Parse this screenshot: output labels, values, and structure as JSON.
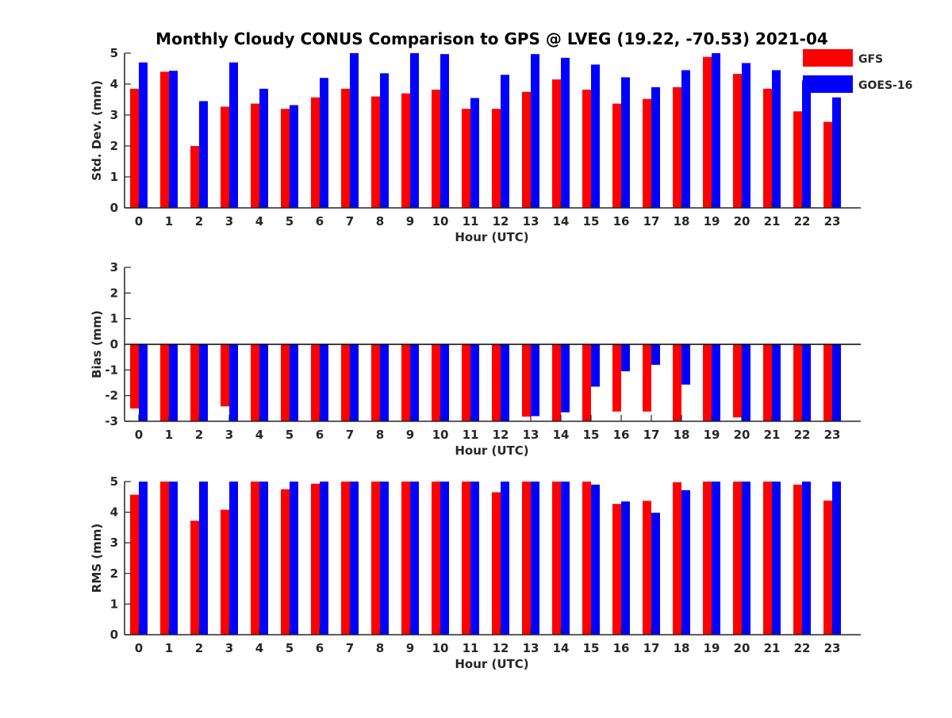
{
  "chart_data": {
    "title": "Monthly Cloudy CONUS Comparison to GPS @ LVEG (19.22, -70.53) 2021-04",
    "legend": {
      "placement": "top-right",
      "entries": [
        {
          "label": "GFS",
          "color": "#ff0000"
        },
        {
          "label": "GOES-16",
          "color": "#0000ff"
        }
      ]
    },
    "panels": [
      {
        "type": "bar",
        "xlabel": "Hour (UTC)",
        "ylabel": "Std. Dev. (mm)",
        "ylim": [
          0,
          5
        ],
        "yticks": [
          0,
          1,
          2,
          3,
          4,
          5
        ],
        "categories": [
          "0",
          "1",
          "2",
          "3",
          "4",
          "5",
          "6",
          "7",
          "8",
          "9",
          "10",
          "11",
          "12",
          "13",
          "14",
          "15",
          "16",
          "17",
          "18",
          "19",
          "20",
          "21",
          "22",
          "23"
        ],
        "series": [
          {
            "name": "GFS",
            "color": "#ff0000",
            "values": [
              3.85,
              4.4,
              2.0,
              3.27,
              3.37,
              3.2,
              3.57,
              3.85,
              3.6,
              3.7,
              3.82,
              3.2,
              3.2,
              3.75,
              4.15,
              3.82,
              3.37,
              3.52,
              3.9,
              4.88,
              4.33,
              3.85,
              3.12,
              2.78
            ]
          },
          {
            "name": "GOES-16",
            "color": "#0000ff",
            "values": [
              4.7,
              4.43,
              3.45,
              4.7,
              3.85,
              3.32,
              4.2,
              5.0,
              4.35,
              5.0,
              4.97,
              3.55,
              4.3,
              4.97,
              4.85,
              4.63,
              4.22,
              3.9,
              4.45,
              5.0,
              4.68,
              4.45,
              4.12,
              3.57
            ]
          }
        ]
      },
      {
        "type": "bar",
        "xlabel": "Hour (UTC)",
        "ylabel": "Bias (mm)",
        "ylim": [
          -3,
          3
        ],
        "yticks": [
          -3,
          -2,
          -1,
          0,
          1,
          2,
          3
        ],
        "categories": [
          "0",
          "1",
          "2",
          "3",
          "4",
          "5",
          "6",
          "7",
          "8",
          "9",
          "10",
          "11",
          "12",
          "13",
          "14",
          "15",
          "16",
          "17",
          "18",
          "19",
          "20",
          "21",
          "22",
          "23"
        ],
        "series": [
          {
            "name": "GFS",
            "color": "#ff0000",
            "values": [
              -2.5,
              -3.0,
              -3.0,
              -2.42,
              -3.0,
              -3.0,
              -3.0,
              -3.0,
              -3.0,
              -3.0,
              -3.0,
              -3.0,
              -3.0,
              -2.82,
              -3.0,
              -3.0,
              -2.62,
              -2.62,
              -3.0,
              -3.0,
              -2.85,
              -3.0,
              -3.0,
              -3.0
            ]
          },
          {
            "name": "GOES-16",
            "color": "#0000ff",
            "values": [
              -3.0,
              -3.0,
              -3.0,
              -3.0,
              -3.0,
              -3.0,
              -3.0,
              -3.0,
              -3.0,
              -3.0,
              -3.0,
              -3.0,
              -3.0,
              -2.8,
              -2.65,
              -1.65,
              -1.05,
              -0.8,
              -1.57,
              -3.0,
              -3.0,
              -3.0,
              -3.0,
              -3.0
            ]
          }
        ]
      },
      {
        "type": "bar",
        "xlabel": "Hour (UTC)",
        "ylabel": "RMS (mm)",
        "ylim": [
          0,
          5
        ],
        "yticks": [
          0,
          1,
          2,
          3,
          4,
          5
        ],
        "categories": [
          "0",
          "1",
          "2",
          "3",
          "4",
          "5",
          "6",
          "7",
          "8",
          "9",
          "10",
          "11",
          "12",
          "13",
          "14",
          "15",
          "16",
          "17",
          "18",
          "19",
          "20",
          "21",
          "22",
          "23"
        ],
        "series": [
          {
            "name": "GFS",
            "color": "#ff0000",
            "values": [
              4.57,
              5.0,
              3.72,
              4.08,
              5.0,
              4.75,
              4.93,
              5.0,
              5.0,
              5.0,
              5.0,
              5.0,
              4.65,
              5.0,
              5.0,
              5.0,
              4.27,
              4.37,
              4.98,
              5.0,
              5.0,
              5.0,
              4.9,
              4.38
            ]
          },
          {
            "name": "GOES-16",
            "color": "#0000ff",
            "values": [
              5.0,
              5.0,
              5.0,
              5.0,
              5.0,
              5.0,
              5.0,
              5.0,
              5.0,
              5.0,
              5.0,
              5.0,
              5.0,
              5.0,
              5.0,
              4.9,
              4.35,
              3.98,
              4.72,
              5.0,
              5.0,
              5.0,
              5.0,
              5.0
            ]
          }
        ]
      }
    ]
  }
}
